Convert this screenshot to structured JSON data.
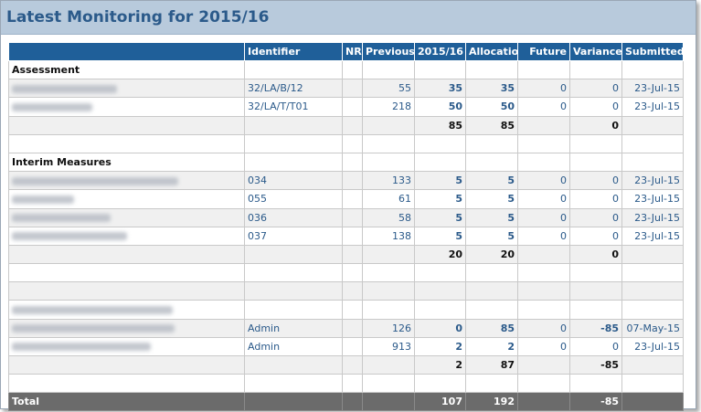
{
  "title": "Latest Monitoring for 2015/16",
  "columns": [
    "",
    "Identifier",
    "NR",
    "Previous",
    "2015/16",
    "Allocation",
    "Future",
    "Variance",
    "Submitted"
  ],
  "sections": {
    "assessment": {
      "label": "Assessment",
      "rows": [
        {
          "identifier": "32/LA/B/12",
          "previous": "55",
          "current": "35",
          "allocation": "35",
          "future": "0",
          "variance": "0",
          "submitted": "23-Jul-15"
        },
        {
          "identifier": "32/LA/T/T01",
          "previous": "218",
          "current": "50",
          "allocation": "50",
          "future": "0",
          "variance": "0",
          "submitted": "23-Jul-15"
        }
      ],
      "subtotal": {
        "current": "85",
        "allocation": "85",
        "variance": "0"
      }
    },
    "interim": {
      "label": "Interim Measures",
      "rows": [
        {
          "identifier": "034",
          "previous": "133",
          "current": "5",
          "allocation": "5",
          "future": "0",
          "variance": "0",
          "submitted": "23-Jul-15"
        },
        {
          "identifier": "055",
          "previous": "61",
          "current": "5",
          "allocation": "5",
          "future": "0",
          "variance": "0",
          "submitted": "23-Jul-15"
        },
        {
          "identifier": "036",
          "previous": "58",
          "current": "5",
          "allocation": "5",
          "future": "0",
          "variance": "0",
          "submitted": "23-Jul-15"
        },
        {
          "identifier": "037",
          "previous": "138",
          "current": "5",
          "allocation": "5",
          "future": "0",
          "variance": "0",
          "submitted": "23-Jul-15"
        }
      ],
      "subtotal": {
        "current": "20",
        "allocation": "20",
        "variance": "0"
      }
    },
    "admin": {
      "rows": [
        {
          "identifier": "Admin",
          "previous": "126",
          "current": "0",
          "allocation": "85",
          "future": "0",
          "variance": "-85",
          "submitted": "07-May-15"
        },
        {
          "identifier": "Admin",
          "previous": "913",
          "current": "2",
          "allocation": "2",
          "future": "0",
          "variance": "0",
          "submitted": "23-Jul-15"
        }
      ],
      "subtotal": {
        "current": "2",
        "allocation": "87",
        "variance": "-85"
      }
    }
  },
  "total": {
    "label": "Total",
    "current": "107",
    "allocation": "192",
    "variance": "-85"
  },
  "colors": {
    "header_bg": "#1f5f99",
    "title_bg": "#b8cadc",
    "title_text": "#2b5a8a",
    "total_bg": "#6b6b6b",
    "value_text": "#2b5a8a"
  }
}
